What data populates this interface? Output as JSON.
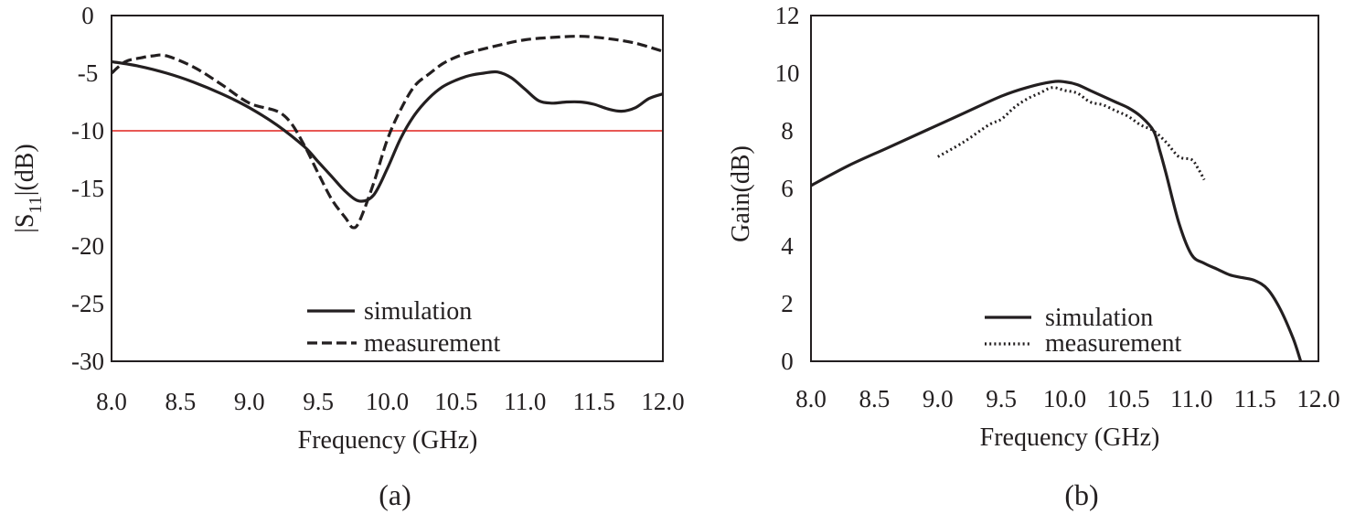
{
  "chart_data": [
    {
      "panel": "a",
      "type": "line",
      "panel_label": "(a)",
      "xlabel": "Frequency (GHz)",
      "ylabel_main": "|S",
      "ylabel_sub": "11",
      "ylabel_tail": "|(dB)",
      "xlim": [
        8.0,
        12.0
      ],
      "ylim": [
        -30,
        0
      ],
      "x_ticks": [
        "8.0",
        "8.5",
        "9.0",
        "9.5",
        "10.0",
        "10.5",
        "11.0",
        "11.5",
        "12.0"
      ],
      "y_ticks": [
        "0",
        "-5",
        "-10",
        "-15",
        "-20",
        "-25",
        "-30"
      ],
      "reference_line": {
        "y": -10,
        "color": "#e0211d"
      },
      "legend": {
        "position": "bottom-center",
        "entries": [
          "simulation",
          "measurement"
        ]
      },
      "series": [
        {
          "name": "simulation",
          "style": "solid",
          "x": [
            8.0,
            8.2,
            8.4,
            8.6,
            8.8,
            9.0,
            9.2,
            9.4,
            9.5,
            9.6,
            9.7,
            9.8,
            9.9,
            10.0,
            10.1,
            10.2,
            10.3,
            10.4,
            10.5,
            10.6,
            10.7,
            10.8,
            10.9,
            11.0,
            11.1,
            11.2,
            11.3,
            11.4,
            11.5,
            11.6,
            11.7,
            11.8,
            11.9,
            12.0
          ],
          "y": [
            -4.0,
            -4.4,
            -5.0,
            -5.8,
            -6.8,
            -8.0,
            -9.5,
            -11.4,
            -12.7,
            -14.0,
            -15.3,
            -16.1,
            -15.6,
            -13.3,
            -10.6,
            -8.6,
            -7.2,
            -6.2,
            -5.6,
            -5.2,
            -5.0,
            -4.9,
            -5.4,
            -6.4,
            -7.4,
            -7.6,
            -7.5,
            -7.5,
            -7.7,
            -8.1,
            -8.3,
            -8.0,
            -7.2,
            -6.8
          ]
        },
        {
          "name": "measurement",
          "style": "dashed",
          "x": [
            8.0,
            8.1,
            8.2,
            8.3,
            8.4,
            8.6,
            8.8,
            9.0,
            9.2,
            9.3,
            9.4,
            9.5,
            9.6,
            9.7,
            9.75,
            9.8,
            9.9,
            10.0,
            10.1,
            10.2,
            10.3,
            10.4,
            10.5,
            10.6,
            10.8,
            11.0,
            11.2,
            11.4,
            11.6,
            11.8,
            12.0
          ],
          "y": [
            -5.0,
            -4.0,
            -3.7,
            -3.5,
            -3.5,
            -4.5,
            -6.0,
            -7.6,
            -8.3,
            -9.3,
            -11.3,
            -13.7,
            -16.0,
            -17.6,
            -18.4,
            -17.8,
            -14.6,
            -10.8,
            -8.1,
            -6.1,
            -5.1,
            -4.2,
            -3.6,
            -3.2,
            -2.6,
            -2.1,
            -1.9,
            -1.8,
            -2.0,
            -2.4,
            -3.1
          ]
        }
      ]
    },
    {
      "panel": "b",
      "type": "line",
      "panel_label": "(b)",
      "xlabel": "Frequency (GHz)",
      "ylabel": "Gain(dB)",
      "xlim": [
        8.0,
        12.0
      ],
      "ylim": [
        0,
        12
      ],
      "x_ticks": [
        "8.0",
        "8.5",
        "9.0",
        "9.5",
        "10.0",
        "10.5",
        "11.0",
        "11.5",
        "12.0"
      ],
      "y_ticks": [
        "12",
        "10",
        "8",
        "6",
        "4",
        "2",
        "0"
      ],
      "legend": {
        "position": "bottom-center",
        "entries": [
          "simulation",
          "measurement"
        ]
      },
      "series": [
        {
          "name": "simulation",
          "style": "solid",
          "x": [
            8.0,
            8.3,
            8.6,
            8.9,
            9.2,
            9.5,
            9.7,
            9.9,
            10.0,
            10.1,
            10.2,
            10.3,
            10.4,
            10.5,
            10.6,
            10.7,
            10.75,
            10.8,
            10.9,
            11.0,
            11.1,
            11.2,
            11.3,
            11.4,
            11.5,
            11.6,
            11.7,
            11.8,
            11.86
          ],
          "y": [
            6.1,
            6.8,
            7.4,
            8.0,
            8.6,
            9.2,
            9.5,
            9.7,
            9.7,
            9.6,
            9.4,
            9.2,
            9.0,
            8.8,
            8.5,
            8.0,
            7.3,
            6.5,
            4.8,
            3.7,
            3.4,
            3.2,
            3.0,
            2.9,
            2.8,
            2.5,
            1.8,
            0.8,
            0.0
          ]
        },
        {
          "name": "measurement",
          "style": "dotted",
          "x": [
            9.0,
            9.2,
            9.4,
            9.5,
            9.6,
            9.7,
            9.8,
            9.9,
            10.0,
            10.1,
            10.2,
            10.3,
            10.4,
            10.5,
            10.6,
            10.7,
            10.8,
            10.9,
            11.0,
            11.05,
            11.1
          ],
          "y": [
            7.1,
            7.6,
            8.2,
            8.4,
            8.8,
            9.1,
            9.3,
            9.5,
            9.4,
            9.3,
            9.0,
            8.9,
            8.7,
            8.5,
            8.2,
            8.0,
            7.6,
            7.1,
            7.0,
            6.7,
            6.3
          ]
        }
      ]
    }
  ]
}
